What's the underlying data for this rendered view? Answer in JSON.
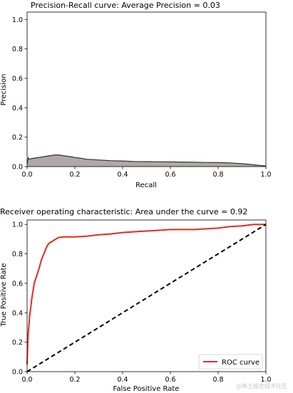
{
  "watermark": "@稀土掘金技术社区",
  "chart_data": [
    {
      "type": "area",
      "title": "Precision-Recall curve: Average Precision =          0.03",
      "xlabel": "Recall",
      "ylabel": "Precision",
      "xlim": [
        0.0,
        1.0
      ],
      "ylim": [
        0.0,
        1.05
      ],
      "xticks": [
        "0.0",
        "0.2",
        "0.4",
        "0.6",
        "0.8",
        "1.0"
      ],
      "yticks": [
        "0.0",
        "0.2",
        "0.4",
        "0.6",
        "0.8",
        "1.0"
      ],
      "fill_color": "#b0a8a6",
      "line_color": "#333333",
      "series": [
        {
          "x": [
            0.0,
            0.005,
            0.01,
            0.02,
            0.04,
            0.06,
            0.08,
            0.1,
            0.12,
            0.14,
            0.16,
            0.18,
            0.2,
            0.22,
            0.25,
            0.3,
            0.35,
            0.4,
            0.45,
            0.5,
            0.55,
            0.6,
            0.65,
            0.7,
            0.75,
            0.8,
            0.85,
            0.9,
            0.95,
            1.0
          ],
          "y": [
            0.02,
            0.06,
            0.05,
            0.055,
            0.06,
            0.065,
            0.07,
            0.075,
            0.08,
            0.078,
            0.072,
            0.068,
            0.062,
            0.058,
            0.05,
            0.045,
            0.04,
            0.038,
            0.035,
            0.034,
            0.033,
            0.032,
            0.031,
            0.03,
            0.028,
            0.027,
            0.025,
            0.02,
            0.012,
            0.004
          ]
        }
      ]
    },
    {
      "type": "line",
      "title": "Receiver operating characteristic: Area under the           curve = 0.92",
      "xlabel": "False Positive Rate",
      "ylabel": "True Positive Rate",
      "xlim": [
        0.0,
        1.0
      ],
      "ylim": [
        0.0,
        1.03
      ],
      "xticks": [
        "0.0",
        "0.2",
        "0.4",
        "0.6",
        "0.8",
        "1.0"
      ],
      "yticks": [
        "0.0",
        "0.2",
        "0.4",
        "0.6",
        "0.8",
        "1.0"
      ],
      "legend_location": "lower-right",
      "series": [
        {
          "name": "ROC curve",
          "color": "#e8291f",
          "x": [
            0.0,
            0.003,
            0.005,
            0.008,
            0.01,
            0.015,
            0.02,
            0.025,
            0.03,
            0.04,
            0.05,
            0.06,
            0.07,
            0.08,
            0.09,
            0.1,
            0.11,
            0.12,
            0.13,
            0.15,
            0.2,
            0.25,
            0.3,
            0.35,
            0.4,
            0.45,
            0.5,
            0.55,
            0.6,
            0.65,
            0.7,
            0.75,
            0.8,
            0.85,
            0.9,
            0.95,
            1.0
          ],
          "y": [
            0.05,
            0.2,
            0.27,
            0.32,
            0.37,
            0.43,
            0.5,
            0.55,
            0.6,
            0.65,
            0.7,
            0.76,
            0.8,
            0.84,
            0.87,
            0.88,
            0.89,
            0.9,
            0.91,
            0.915,
            0.915,
            0.92,
            0.93,
            0.935,
            0.945,
            0.95,
            0.955,
            0.96,
            0.965,
            0.965,
            0.965,
            0.97,
            0.975,
            0.985,
            0.99,
            1.0,
            1.0
          ]
        },
        {
          "name": "",
          "color": "#000000",
          "dashed": true,
          "x": [
            0.0,
            1.0
          ],
          "y": [
            0.0,
            1.0
          ]
        }
      ]
    }
  ]
}
